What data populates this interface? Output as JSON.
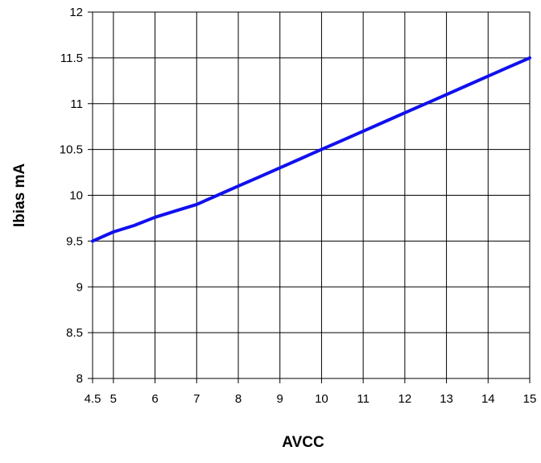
{
  "chart_data": {
    "type": "line",
    "title": "",
    "xlabel": "AVCC",
    "ylabel": "Ibias mA",
    "xlim": [
      4.5,
      15
    ],
    "ylim": [
      8,
      12
    ],
    "x_ticks": [
      4.5,
      5,
      6,
      7,
      8,
      9,
      10,
      11,
      12,
      13,
      14,
      15
    ],
    "x_tick_labels": [
      "4.5",
      "5",
      "6",
      "7",
      "8",
      "9",
      "10",
      "11",
      "12",
      "13",
      "14",
      "15"
    ],
    "y_ticks": [
      8,
      8.5,
      9,
      9.5,
      10,
      10.5,
      11,
      11.5,
      12
    ],
    "y_tick_labels": [
      "8",
      "8.5",
      "9",
      "9.5",
      "10",
      "10.5",
      "11",
      "11.5",
      "12"
    ],
    "grid": true,
    "legend": "none",
    "series": [
      {
        "color": "#1010EE",
        "x": [
          4.5,
          5,
          5.5,
          6,
          6.5,
          7,
          7.5,
          8,
          8.5,
          9,
          9.5,
          10,
          10.5,
          11,
          11.5,
          12,
          12.5,
          13,
          13.5,
          14,
          14.5,
          15
        ],
        "values": [
          9.5,
          9.6,
          9.67,
          9.76,
          9.83,
          9.9,
          10.0,
          10.1,
          10.2,
          10.3,
          10.4,
          10.5,
          10.6,
          10.7,
          10.8,
          10.9,
          11.0,
          11.1,
          11.2,
          11.3,
          11.4,
          11.5
        ]
      }
    ]
  }
}
